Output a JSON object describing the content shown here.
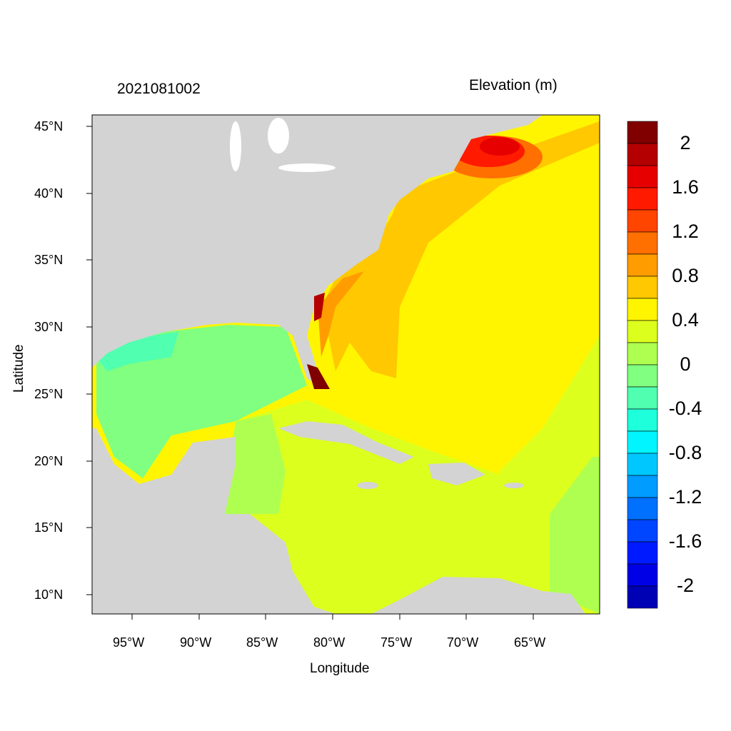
{
  "header": {
    "date_stamp": "2021081002",
    "variable_title": "Elevation (m)"
  },
  "axes": {
    "xlabel": "Longitude",
    "ylabel": "Latitude",
    "x_ticks": [
      "95°W",
      "90°W",
      "85°W",
      "80°W",
      "75°W",
      "70°W",
      "65°W"
    ],
    "y_ticks": [
      "45°N",
      "40°N",
      "35°N",
      "30°N",
      "25°N",
      "20°N",
      "15°N",
      "10°N"
    ]
  },
  "colorbar": {
    "labels": [
      "2",
      "1.6",
      "1.2",
      "0.8",
      "0.4",
      "0",
      "-0.4",
      "-0.8",
      "-1.2",
      "-1.6",
      "-2"
    ],
    "colors": [
      "#800000",
      "#B40000",
      "#E60000",
      "#FF1A00",
      "#FF4500",
      "#FF7000",
      "#FF9C00",
      "#FFC800",
      "#FFF500",
      "#DCFF1E",
      "#AFFF50",
      "#80FF80",
      "#50FFAF",
      "#1EFFDC",
      "#00F5FF",
      "#00C8FF",
      "#009CFF",
      "#0070FF",
      "#0045FF",
      "#001AFF",
      "#0000E6",
      "#0000B4"
    ]
  },
  "map": {
    "land_color": "#D3D3D3",
    "lon_range": [
      -98,
      -60
    ],
    "lat_range": [
      8.5,
      45.9
    ]
  }
}
